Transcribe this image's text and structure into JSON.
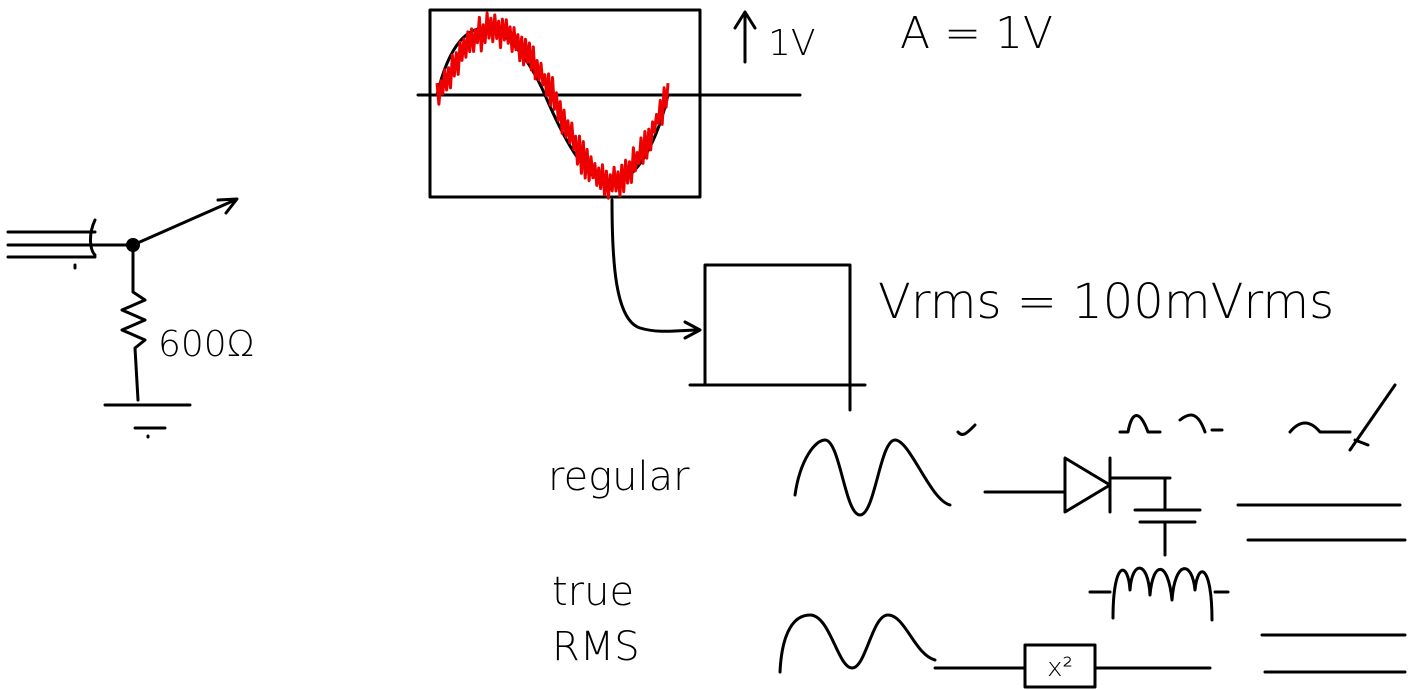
{
  "scope": {
    "amplitude_arrow_label": "1V",
    "amplitude": "A = 1V"
  },
  "source": {
    "resistor_label": "600Ω"
  },
  "meter": {
    "reading": "Vrms = 100mVrms"
  },
  "rows": [
    {
      "lines": [
        "regular"
      ]
    },
    {
      "lines": [
        "true",
        "RMS"
      ],
      "block_label": "x²"
    }
  ]
}
